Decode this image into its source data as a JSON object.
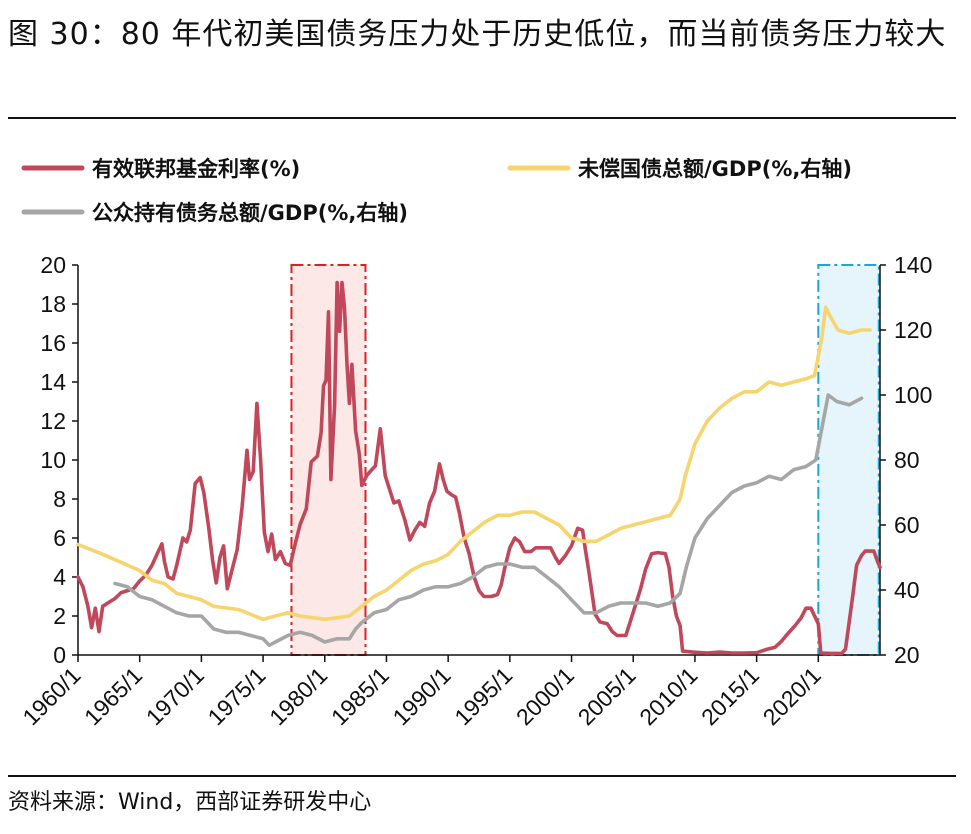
{
  "title": "图 30：80 年代初美国债务压力处于历史低位，而当前债务压力较大",
  "source": "资料来源：Wind，西部证券研发中心",
  "chart_data": {
    "type": "line",
    "legend_placement": "top",
    "x_tick_labels": [
      "1960/1",
      "1965/1",
      "1970/1",
      "1975/1",
      "1980/1",
      "1985/1",
      "1990/1",
      "1995/1",
      "2000/1",
      "2005/1",
      "2010/1",
      "2015/1",
      "2020/1"
    ],
    "xlim": [
      1960,
      2025
    ],
    "ylim_left": [
      0,
      20
    ],
    "y_left_ticks": [
      "0",
      "2",
      "4",
      "6",
      "8",
      "10",
      "12",
      "14",
      "16",
      "18",
      "20"
    ],
    "ylim_right": [
      20,
      140
    ],
    "y_right_ticks": [
      "20",
      "40",
      "60",
      "80",
      "100",
      "120",
      "140"
    ],
    "highlight_regions": [
      {
        "x": [
          1977.3,
          1983.3
        ],
        "color": "#e02020",
        "fill": "#fde8e8"
      },
      {
        "x": [
          2020.0,
          2024.9
        ],
        "color": "#1aa7d8",
        "fill": "#e6f5fb"
      }
    ],
    "series": [
      {
        "name": "有效联邦基金利率(%)",
        "axis": "left",
        "color": "#c0485a",
        "points": [
          [
            1960.0,
            4.0
          ],
          [
            1960.4,
            3.5
          ],
          [
            1960.8,
            2.5
          ],
          [
            1961.1,
            1.4
          ],
          [
            1961.4,
            2.4
          ],
          [
            1961.7,
            1.2
          ],
          [
            1962.0,
            2.5
          ],
          [
            1962.5,
            2.7
          ],
          [
            1963.0,
            2.9
          ],
          [
            1963.5,
            3.2
          ],
          [
            1964.0,
            3.3
          ],
          [
            1964.5,
            3.4
          ],
          [
            1965.0,
            3.8
          ],
          [
            1965.5,
            4.1
          ],
          [
            1966.0,
            4.6
          ],
          [
            1966.5,
            5.3
          ],
          [
            1966.8,
            5.7
          ],
          [
            1967.0,
            4.8
          ],
          [
            1967.3,
            4.0
          ],
          [
            1967.7,
            3.9
          ],
          [
            1968.0,
            4.6
          ],
          [
            1968.5,
            6.0
          ],
          [
            1968.8,
            5.8
          ],
          [
            1969.1,
            6.4
          ],
          [
            1969.5,
            8.8
          ],
          [
            1969.9,
            9.1
          ],
          [
            1970.2,
            8.3
          ],
          [
            1970.6,
            6.5
          ],
          [
            1970.9,
            4.9
          ],
          [
            1971.2,
            3.7
          ],
          [
            1971.5,
            5.0
          ],
          [
            1971.8,
            5.6
          ],
          [
            1972.1,
            3.4
          ],
          [
            1972.5,
            4.4
          ],
          [
            1972.9,
            5.4
          ],
          [
            1973.3,
            7.6
          ],
          [
            1973.7,
            10.5
          ],
          [
            1973.9,
            9.0
          ],
          [
            1974.2,
            9.4
          ],
          [
            1974.5,
            12.9
          ],
          [
            1974.8,
            10.0
          ],
          [
            1975.1,
            6.3
          ],
          [
            1975.4,
            5.3
          ],
          [
            1975.7,
            6.2
          ],
          [
            1976.0,
            4.9
          ],
          [
            1976.4,
            5.3
          ],
          [
            1976.8,
            4.7
          ],
          [
            1977.2,
            4.6
          ],
          [
            1977.6,
            5.7
          ],
          [
            1978.0,
            6.7
          ],
          [
            1978.5,
            7.5
          ],
          [
            1978.9,
            9.9
          ],
          [
            1979.4,
            10.2
          ],
          [
            1979.7,
            11.4
          ],
          [
            1979.9,
            13.8
          ],
          [
            1980.1,
            14.1
          ],
          [
            1980.3,
            17.6
          ],
          [
            1980.5,
            9.0
          ],
          [
            1980.8,
            12.8
          ],
          [
            1981.0,
            19.1
          ],
          [
            1981.2,
            16.6
          ],
          [
            1981.4,
            19.1
          ],
          [
            1981.6,
            17.8
          ],
          [
            1981.8,
            14.9
          ],
          [
            1982.0,
            12.9
          ],
          [
            1982.2,
            14.9
          ],
          [
            1982.5,
            11.5
          ],
          [
            1982.8,
            10.3
          ],
          [
            1983.0,
            8.7
          ],
          [
            1983.4,
            9.2
          ],
          [
            1983.8,
            9.5
          ],
          [
            1984.1,
            9.7
          ],
          [
            1984.5,
            11.6
          ],
          [
            1984.9,
            9.2
          ],
          [
            1985.2,
            8.6
          ],
          [
            1985.6,
            7.8
          ],
          [
            1986.0,
            7.9
          ],
          [
            1986.5,
            6.9
          ],
          [
            1986.9,
            5.9
          ],
          [
            1987.3,
            6.4
          ],
          [
            1987.7,
            6.8
          ],
          [
            1988.1,
            6.6
          ],
          [
            1988.5,
            7.8
          ],
          [
            1988.9,
            8.4
          ],
          [
            1989.3,
            9.8
          ],
          [
            1989.6,
            9.0
          ],
          [
            1989.9,
            8.4
          ],
          [
            1990.3,
            8.2
          ],
          [
            1990.6,
            8.1
          ],
          [
            1990.9,
            7.3
          ],
          [
            1991.3,
            6.0
          ],
          [
            1991.7,
            5.2
          ],
          [
            1992.1,
            4.0
          ],
          [
            1992.5,
            3.3
          ],
          [
            1992.9,
            3.0
          ],
          [
            1993.5,
            3.0
          ],
          [
            1994.0,
            3.1
          ],
          [
            1994.3,
            3.6
          ],
          [
            1994.6,
            4.5
          ],
          [
            1995.0,
            5.5
          ],
          [
            1995.4,
            6.0
          ],
          [
            1995.8,
            5.8
          ],
          [
            1996.2,
            5.3
          ],
          [
            1996.7,
            5.3
          ],
          [
            1997.1,
            5.5
          ],
          [
            1997.7,
            5.5
          ],
          [
            1998.3,
            5.5
          ],
          [
            1998.7,
            5.0
          ],
          [
            1999.0,
            4.7
          ],
          [
            1999.5,
            5.1
          ],
          [
            2000.0,
            5.6
          ],
          [
            2000.5,
            6.5
          ],
          [
            2000.9,
            6.4
          ],
          [
            2001.1,
            5.5
          ],
          [
            2001.4,
            4.3
          ],
          [
            2001.7,
            3.0
          ],
          [
            2001.9,
            2.1
          ],
          [
            2002.3,
            1.7
          ],
          [
            2002.9,
            1.6
          ],
          [
            2003.3,
            1.2
          ],
          [
            2003.7,
            1.0
          ],
          [
            2004.4,
            1.0
          ],
          [
            2004.8,
            1.8
          ],
          [
            2005.2,
            2.6
          ],
          [
            2005.6,
            3.4
          ],
          [
            2006.0,
            4.4
          ],
          [
            2006.5,
            5.2
          ],
          [
            2007.0,
            5.25
          ],
          [
            2007.6,
            5.2
          ],
          [
            2007.9,
            4.5
          ],
          [
            2008.2,
            3.0
          ],
          [
            2008.5,
            2.0
          ],
          [
            2008.8,
            1.5
          ],
          [
            2009.0,
            0.2
          ],
          [
            2009.8,
            0.15
          ],
          [
            2011.0,
            0.1
          ],
          [
            2012.0,
            0.15
          ],
          [
            2013.0,
            0.1
          ],
          [
            2014.0,
            0.1
          ],
          [
            2015.0,
            0.12
          ],
          [
            2015.9,
            0.3
          ],
          [
            2016.5,
            0.4
          ],
          [
            2017.0,
            0.7
          ],
          [
            2017.6,
            1.15
          ],
          [
            2018.1,
            1.5
          ],
          [
            2018.6,
            1.9
          ],
          [
            2019.0,
            2.4
          ],
          [
            2019.4,
            2.4
          ],
          [
            2019.7,
            2.0
          ],
          [
            2020.0,
            1.6
          ],
          [
            2020.2,
            0.1
          ],
          [
            2021.0,
            0.08
          ],
          [
            2021.9,
            0.08
          ],
          [
            2022.2,
            0.3
          ],
          [
            2022.5,
            1.7
          ],
          [
            2022.8,
            3.1
          ],
          [
            2023.1,
            4.6
          ],
          [
            2023.5,
            5.1
          ],
          [
            2023.8,
            5.33
          ],
          [
            2024.5,
            5.33
          ],
          [
            2024.8,
            4.8
          ],
          [
            2025.0,
            4.5
          ]
        ]
      },
      {
        "name": "未偿国债总额/GDP(%,右轴)",
        "axis": "right",
        "color": "#f7d56e",
        "points": [
          [
            1960,
            54
          ],
          [
            1962,
            51
          ],
          [
            1965,
            46
          ],
          [
            1966,
            43
          ],
          [
            1967,
            42
          ],
          [
            1968,
            39
          ],
          [
            1970,
            37
          ],
          [
            1971,
            35
          ],
          [
            1973,
            34
          ],
          [
            1975,
            31
          ],
          [
            1976,
            32
          ],
          [
            1977,
            33
          ],
          [
            1978,
            32
          ],
          [
            1980,
            31
          ],
          [
            1982,
            32
          ],
          [
            1983,
            35
          ],
          [
            1984,
            38
          ],
          [
            1985,
            40
          ],
          [
            1986,
            43
          ],
          [
            1987,
            46
          ],
          [
            1988,
            48
          ],
          [
            1989,
            49
          ],
          [
            1990,
            51
          ],
          [
            1991,
            55
          ],
          [
            1992,
            58
          ],
          [
            1993,
            61
          ],
          [
            1994,
            63
          ],
          [
            1995,
            63
          ],
          [
            1996,
            64
          ],
          [
            1997,
            64
          ],
          [
            1998,
            62
          ],
          [
            1999,
            60
          ],
          [
            2000,
            56
          ],
          [
            2001,
            55
          ],
          [
            2002,
            55
          ],
          [
            2003,
            57
          ],
          [
            2004,
            59
          ],
          [
            2005,
            60
          ],
          [
            2006,
            61
          ],
          [
            2007,
            62
          ],
          [
            2008,
            63
          ],
          [
            2008.8,
            68
          ],
          [
            2009.2,
            75
          ],
          [
            2010,
            85
          ],
          [
            2011,
            92
          ],
          [
            2012,
            96
          ],
          [
            2013,
            99
          ],
          [
            2014,
            101
          ],
          [
            2015,
            101
          ],
          [
            2016,
            104
          ],
          [
            2017,
            103
          ],
          [
            2018,
            104
          ],
          [
            2019,
            105
          ],
          [
            2019.7,
            106
          ],
          [
            2020.3,
            118
          ],
          [
            2020.6,
            127
          ],
          [
            2021,
            124
          ],
          [
            2021.6,
            120
          ],
          [
            2022.5,
            119
          ],
          [
            2023.5,
            120
          ],
          [
            2024.2,
            120
          ]
        ]
      },
      {
        "name": "公众持有债务总额/GDP(%,右轴)",
        "axis": "right",
        "color": "#a6a6a6",
        "points": [
          [
            1963,
            42
          ],
          [
            1964,
            41
          ],
          [
            1965,
            38
          ],
          [
            1966,
            37
          ],
          [
            1967,
            35
          ],
          [
            1968,
            33
          ],
          [
            1969,
            32
          ],
          [
            1970,
            32
          ],
          [
            1971,
            28
          ],
          [
            1972,
            27
          ],
          [
            1973,
            27
          ],
          [
            1974,
            26
          ],
          [
            1975,
            25
          ],
          [
            1975.5,
            23
          ],
          [
            1976,
            24
          ],
          [
            1977,
            26
          ],
          [
            1978,
            27
          ],
          [
            1979,
            26
          ],
          [
            1980,
            24
          ],
          [
            1981,
            25
          ],
          [
            1982,
            25
          ],
          [
            1982.5,
            28
          ],
          [
            1983,
            30
          ],
          [
            1984,
            33
          ],
          [
            1985,
            34
          ],
          [
            1986,
            37
          ],
          [
            1987,
            38
          ],
          [
            1988,
            40
          ],
          [
            1989,
            41
          ],
          [
            1990,
            41
          ],
          [
            1991,
            42
          ],
          [
            1992,
            44
          ],
          [
            1993,
            47
          ],
          [
            1994,
            48
          ],
          [
            1995,
            48
          ],
          [
            1996,
            47
          ],
          [
            1997,
            47
          ],
          [
            1998,
            44
          ],
          [
            1999,
            41
          ],
          [
            2000,
            37
          ],
          [
            2001,
            33
          ],
          [
            2002,
            33
          ],
          [
            2003,
            35
          ],
          [
            2004,
            36
          ],
          [
            2005,
            36
          ],
          [
            2006,
            36
          ],
          [
            2007,
            35
          ],
          [
            2008,
            36
          ],
          [
            2008.8,
            39
          ],
          [
            2009.3,
            47
          ],
          [
            2010,
            56
          ],
          [
            2011,
            62
          ],
          [
            2012,
            66
          ],
          [
            2013,
            70
          ],
          [
            2014,
            72
          ],
          [
            2015,
            73
          ],
          [
            2016,
            75
          ],
          [
            2017,
            74
          ],
          [
            2018,
            77
          ],
          [
            2019,
            78
          ],
          [
            2019.8,
            80
          ],
          [
            2020.3,
            90
          ],
          [
            2020.8,
            100
          ],
          [
            2021.5,
            98
          ],
          [
            2022.5,
            97
          ],
          [
            2023.5,
            99
          ]
        ]
      }
    ]
  }
}
